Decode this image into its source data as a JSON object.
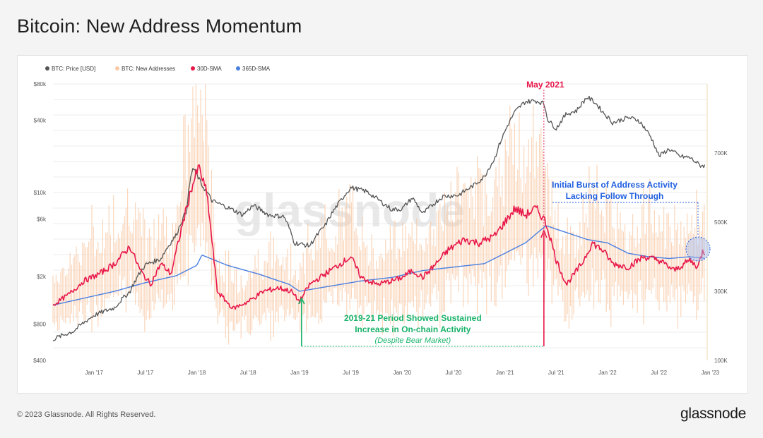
{
  "page": {
    "title": "Bitcoin: New Address Momentum",
    "footer": "© 2023 Glassnode. All Rights Reserved.",
    "brand": "glassnode",
    "watermark": "glassnode"
  },
  "colors": {
    "price": "#555555",
    "new_addresses": "#f9c9a5",
    "sma30": "#e8174a",
    "sma365": "#4a7fe0",
    "green": "#19b36b",
    "blue_text": "#1f5fe0",
    "red_text": "#e8174a"
  },
  "chart_data": {
    "type": "line",
    "title": "Bitcoin: New Address Momentum",
    "legend_position": "top-left",
    "legend": [
      {
        "name": "BTC: Price [USD]",
        "color": "#555555"
      },
      {
        "name": "BTC: New Addresses",
        "color": "#f9c9a5"
      },
      {
        "name": "30D-SMA",
        "color": "#e8174a"
      },
      {
        "name": "365D-SMA",
        "color": "#4a7fe0"
      }
    ],
    "x_ticks": [
      "Jan '17",
      "Jul '17",
      "Jan '18",
      "Jul '18",
      "Jan '19",
      "Jul '19",
      "Jan '20",
      "Jul '20",
      "Jan '21",
      "Jul '21",
      "Jan '22",
      "Jul '22",
      "Jan '23"
    ],
    "x_tick_years": [
      2017.0,
      2017.5,
      2018.0,
      2018.5,
      2019.0,
      2019.5,
      2020.0,
      2020.5,
      2021.0,
      2021.5,
      2022.0,
      2022.5,
      2023.0
    ],
    "xlim": [
      2016.6,
      2022.97
    ],
    "y_left": {
      "scale": "log",
      "range": [
        400,
        80000
      ],
      "ticks": [
        400,
        800,
        2000,
        6000,
        10000,
        40000,
        80000
      ],
      "tick_labels": [
        "$400",
        "$800",
        "$2k",
        "$6k",
        "$10k",
        "$40k",
        "$80k"
      ]
    },
    "y_right": {
      "scale": "linear",
      "range": [
        100000,
        900000
      ],
      "ticks": [
        100000,
        300000,
        500000,
        700000
      ],
      "tick_labels": [
        "100K",
        "300K",
        "500K",
        "700K"
      ]
    },
    "grid": true,
    "series": [
      {
        "name": "BTC: Price [USD]",
        "axis": "left",
        "x": [
          2016.6,
          2016.8,
          2017.0,
          2017.2,
          2017.35,
          2017.5,
          2017.65,
          2017.8,
          2017.9,
          2017.96,
          2018.05,
          2018.15,
          2018.3,
          2018.45,
          2018.55,
          2018.7,
          2018.85,
          2018.95,
          2019.1,
          2019.25,
          2019.4,
          2019.5,
          2019.65,
          2019.8,
          2019.9,
          2020.0,
          2020.1,
          2020.2,
          2020.4,
          2020.55,
          2020.7,
          2020.8,
          2020.9,
          2021.0,
          2021.1,
          2021.2,
          2021.3,
          2021.38,
          2021.42,
          2021.5,
          2021.6,
          2021.7,
          2021.8,
          2021.87,
          2021.95,
          2022.05,
          2022.2,
          2022.3,
          2022.42,
          2022.5,
          2022.6,
          2022.7,
          2022.8,
          2022.9,
          2022.97
        ],
        "values": [
          600,
          700,
          950,
          1100,
          1500,
          2500,
          2800,
          4400,
          7000,
          16000,
          11500,
          8500,
          7500,
          6500,
          7800,
          6500,
          6300,
          3800,
          3600,
          5300,
          8500,
          11000,
          10200,
          8300,
          7200,
          7300,
          9000,
          6600,
          9300,
          9500,
          11500,
          13500,
          19000,
          32000,
          47000,
          57000,
          58000,
          55000,
          40000,
          34000,
          45000,
          48000,
          62000,
          57000,
          47000,
          38000,
          42000,
          40000,
          29000,
          20000,
          23000,
          20000,
          19500,
          16800,
          16600
        ]
      },
      {
        "name": "30D-SMA",
        "axis": "right",
        "x": [
          2016.6,
          2016.75,
          2016.9,
          2017.05,
          2017.2,
          2017.35,
          2017.45,
          2017.55,
          2017.65,
          2017.75,
          2017.85,
          2017.95,
          2018.02,
          2018.1,
          2018.2,
          2018.35,
          2018.5,
          2018.65,
          2018.8,
          2018.92,
          2019.0,
          2019.1,
          2019.25,
          2019.4,
          2019.5,
          2019.6,
          2019.75,
          2019.9,
          2020.0,
          2020.1,
          2020.2,
          2020.3,
          2020.45,
          2020.6,
          2020.75,
          2020.9,
          2021.0,
          2021.1,
          2021.2,
          2021.3,
          2021.38,
          2021.42,
          2021.5,
          2021.6,
          2021.75,
          2021.85,
          2021.95,
          2022.05,
          2022.2,
          2022.35,
          2022.5,
          2022.65,
          2022.8,
          2022.88,
          2022.93,
          2022.97
        ],
        "values": [
          260000,
          290000,
          330000,
          350000,
          380000,
          430000,
          360000,
          320000,
          380000,
          350000,
          480000,
          600000,
          660000,
          580000,
          300000,
          250000,
          270000,
          300000,
          310000,
          300000,
          270000,
          320000,
          350000,
          380000,
          400000,
          340000,
          320000,
          330000,
          340000,
          360000,
          340000,
          370000,
          420000,
          450000,
          440000,
          460000,
          500000,
          540000,
          520000,
          540000,
          510000,
          480000,
          390000,
          320000,
          380000,
          440000,
          420000,
          380000,
          370000,
          400000,
          390000,
          360000,
          390000,
          370000,
          420000,
          400000
        ]
      },
      {
        "name": "365D-SMA",
        "axis": "right",
        "x": [
          2016.6,
          2016.9,
          2017.2,
          2017.5,
          2017.8,
          2018.0,
          2018.05,
          2018.3,
          2018.6,
          2018.9,
          2019.0,
          2019.3,
          2019.6,
          2019.9,
          2020.2,
          2020.5,
          2020.8,
          2021.0,
          2021.2,
          2021.4,
          2021.6,
          2021.8,
          2022.0,
          2022.2,
          2022.4,
          2022.6,
          2022.8,
          2022.97
        ],
        "values": [
          260000,
          280000,
          300000,
          325000,
          345000,
          375000,
          405000,
          375000,
          350000,
          320000,
          300000,
          315000,
          330000,
          340000,
          360000,
          370000,
          380000,
          410000,
          440000,
          490000,
          470000,
          450000,
          440000,
          410000,
          400000,
          395000,
          400000,
          395000
        ]
      },
      {
        "name": "BTC: New Addresses",
        "axis": "right",
        "x": [
          2016.6,
          2016.75,
          2016.9,
          2017.05,
          2017.2,
          2017.35,
          2017.45,
          2017.55,
          2017.65,
          2017.75,
          2017.85,
          2017.95,
          2018.02,
          2018.1,
          2018.2,
          2018.35,
          2018.5,
          2018.65,
          2018.8,
          2018.92,
          2019.0,
          2019.1,
          2019.25,
          2019.4,
          2019.5,
          2019.6,
          2019.75,
          2019.9,
          2020.0,
          2020.1,
          2020.2,
          2020.3,
          2020.45,
          2020.6,
          2020.75,
          2020.9,
          2021.0,
          2021.1,
          2021.2,
          2021.3,
          2021.38,
          2021.42,
          2021.5,
          2021.6,
          2021.75,
          2021.85,
          2021.95,
          2022.05,
          2022.2,
          2022.35,
          2022.5,
          2022.65,
          2022.8,
          2022.88,
          2022.93,
          2022.97
        ],
        "values": [
          260000,
          290000,
          330000,
          350000,
          380000,
          430000,
          360000,
          320000,
          380000,
          350000,
          480000,
          600000,
          660000,
          580000,
          300000,
          250000,
          270000,
          300000,
          310000,
          300000,
          270000,
          320000,
          350000,
          380000,
          400000,
          340000,
          320000,
          330000,
          340000,
          360000,
          340000,
          370000,
          420000,
          450000,
          440000,
          460000,
          500000,
          540000,
          520000,
          540000,
          510000,
          480000,
          390000,
          320000,
          380000,
          440000,
          420000,
          380000,
          370000,
          400000,
          390000,
          360000,
          390000,
          370000,
          420000,
          400000
        ]
      }
    ],
    "annotations": {
      "may2021": {
        "label": "May 2021",
        "x": 2021.38
      },
      "period": {
        "line1": "2019-21 Period Showed Sustained",
        "line2": "Increase in On-chain Activity",
        "line3": "(Despite Bear Market)",
        "x_start": 2019.02,
        "x_end": 2021.38
      },
      "burst": {
        "line1": "Initial Burst of Address Activity",
        "line2": "Lacking Follow Through"
      }
    }
  }
}
